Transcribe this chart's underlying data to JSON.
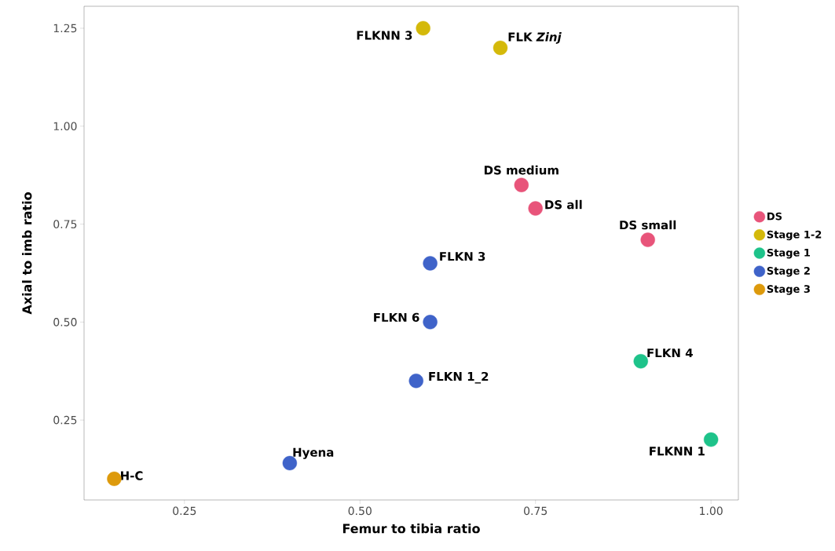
{
  "chart_data": {
    "type": "scatter",
    "xlabel": "Femur to tibia ratio",
    "ylabel": "Axial to imb ratio",
    "xlim": [
      0.107,
      1.039
    ],
    "ylim": [
      0.046,
      1.306
    ],
    "xticks": [
      {
        "value": 0.25,
        "label": "0.25"
      },
      {
        "value": 0.5,
        "label": "0.50"
      },
      {
        "value": 0.75,
        "label": "0.75"
      },
      {
        "value": 1.0,
        "label": "1.00"
      }
    ],
    "yticks": [
      {
        "value": 0.25,
        "label": "0.25"
      },
      {
        "value": 0.5,
        "label": "0.50"
      },
      {
        "value": 0.75,
        "label": "0.75"
      },
      {
        "value": 1.0,
        "label": "1.00"
      },
      {
        "value": 1.25,
        "label": "1.25"
      }
    ],
    "series": [
      {
        "name": "DS",
        "color": "#e8547a",
        "x": [
          0.73,
          0.75,
          0.91
        ],
        "values": [
          0.85,
          0.79,
          0.71
        ]
      },
      {
        "name": "Stage 1-2",
        "color": "#d4b90a",
        "x": [
          0.59,
          0.7
        ],
        "values": [
          1.25,
          1.2
        ]
      },
      {
        "name": "Stage 1",
        "color": "#1ec38a",
        "x": [
          0.9,
          1.0
        ],
        "values": [
          0.4,
          0.2
        ]
      },
      {
        "name": "Stage 2",
        "color": "#3f63c9",
        "x": [
          0.6,
          0.6,
          0.58,
          0.4
        ],
        "values": [
          0.65,
          0.5,
          0.35,
          0.14
        ]
      },
      {
        "name": "Stage 3",
        "color": "#dd9a0c",
        "x": [
          0.15
        ],
        "values": [
          0.1
        ]
      }
    ],
    "annotations": [
      {
        "text": "FLKNN 3",
        "x": 0.59,
        "y": 1.25
      },
      {
        "text": "FLK *Zinj*",
        "x": 0.7,
        "y": 1.2
      },
      {
        "text": "DS medium",
        "x": 0.73,
        "y": 0.85
      },
      {
        "text": "DS all",
        "x": 0.75,
        "y": 0.79
      },
      {
        "text": "DS small",
        "x": 0.91,
        "y": 0.71
      },
      {
        "text": "FLKN 3",
        "x": 0.6,
        "y": 0.65
      },
      {
        "text": "FLKN 6",
        "x": 0.6,
        "y": 0.5
      },
      {
        "text": "FLKN 1_2",
        "x": 0.58,
        "y": 0.35
      },
      {
        "text": "FLKN 4",
        "x": 0.9,
        "y": 0.4
      },
      {
        "text": "FLKNN 1",
        "x": 1.0,
        "y": 0.2
      },
      {
        "text": "Hyena",
        "x": 0.4,
        "y": 0.14
      },
      {
        "text": "H-C",
        "x": 0.15,
        "y": 0.1
      }
    ],
    "legend": "right",
    "grid": false
  }
}
